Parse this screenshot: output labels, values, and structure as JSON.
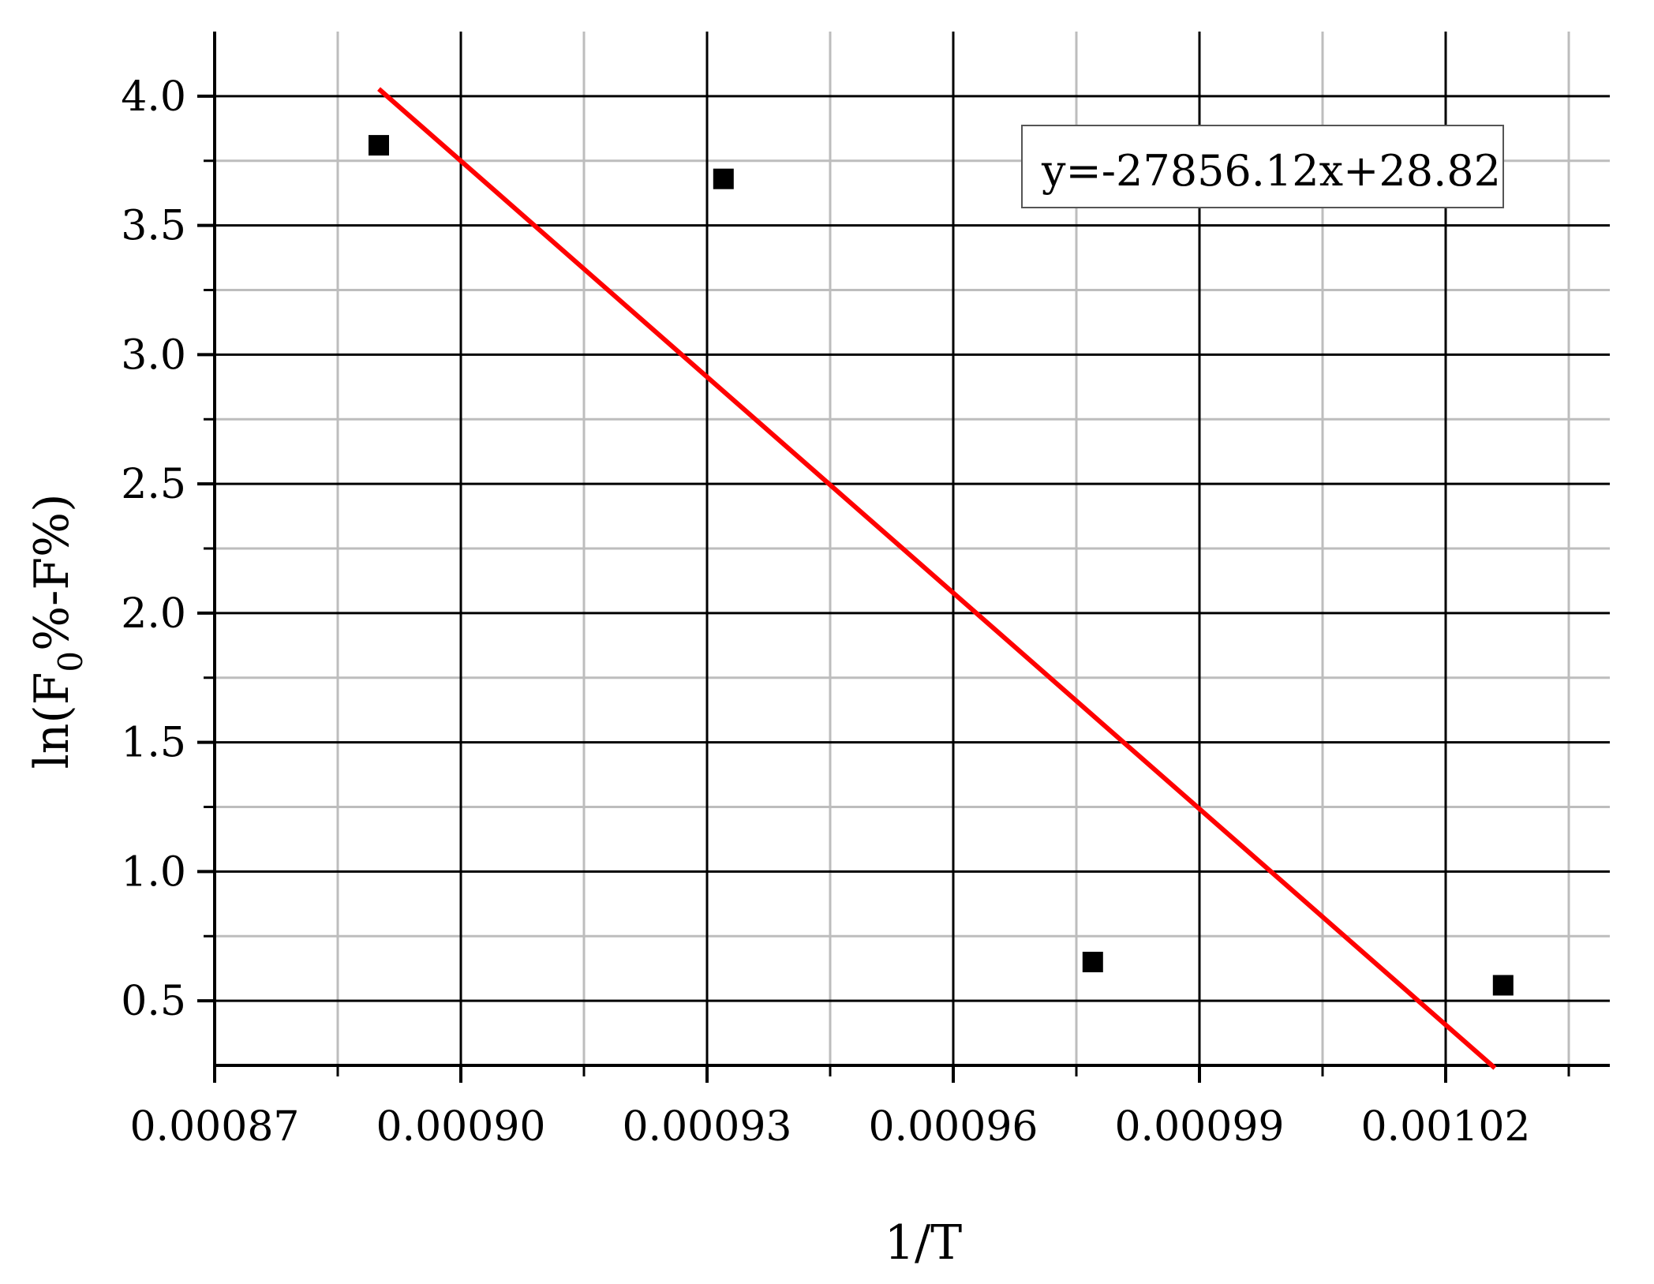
{
  "chart_data": {
    "type": "scatter",
    "xlabel": "1/T",
    "ylabel": {
      "base": "ln(F",
      "sub": "0",
      "rest": "%-F%)"
    },
    "x_ticks": [
      {
        "value": 0.00087,
        "label": "0.00087"
      },
      {
        "value": 0.0009,
        "label": "0.00090"
      },
      {
        "value": 0.00093,
        "label": "0.00093"
      },
      {
        "value": 0.00096,
        "label": "0.00096"
      },
      {
        "value": 0.00099,
        "label": "0.00099"
      },
      {
        "value": 0.00102,
        "label": "0.00102"
      }
    ],
    "y_ticks": [
      {
        "value": 0.5,
        "label": "0.5"
      },
      {
        "value": 1.0,
        "label": "1.0"
      },
      {
        "value": 1.5,
        "label": "1.5"
      },
      {
        "value": 2.0,
        "label": "2.0"
      },
      {
        "value": 2.5,
        "label": "2.5"
      },
      {
        "value": 3.0,
        "label": "3.0"
      },
      {
        "value": 3.5,
        "label": "3.5"
      },
      {
        "value": 4.0,
        "label": "4.0"
      }
    ],
    "xlim": [
      0.00087,
      0.00104
    ],
    "ylim": [
      0.25,
      4.25
    ],
    "grid": true,
    "series": [
      {
        "points": [
          {
            "x": 0.00089,
            "y": 3.81
          },
          {
            "x": 0.000932,
            "y": 3.68
          },
          {
            "x": 0.000977,
            "y": 0.65
          },
          {
            "x": 0.001027,
            "y": 0.56
          }
        ],
        "marker": "square",
        "color": "#000000"
      }
    ],
    "fit_line": {
      "equation": "y=-27856.12x+28.82",
      "slope": -27856.12,
      "intercept": 28.82,
      "x_range": [
        0.00089,
        0.001026
      ],
      "color": "#ff0000"
    }
  }
}
